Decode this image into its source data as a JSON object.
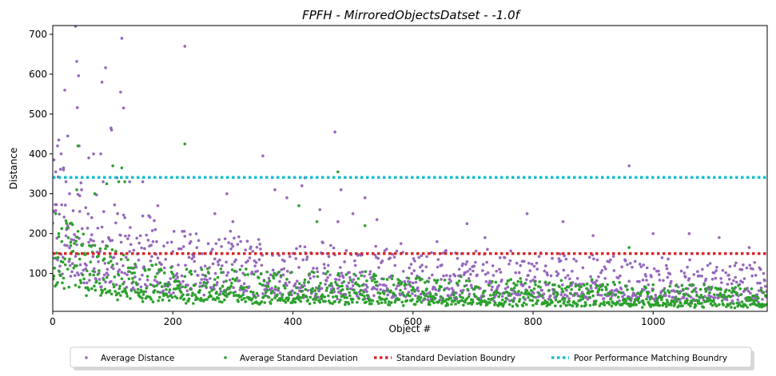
{
  "chart_data": {
    "type": "scatter",
    "title": "FPFH - MirroredObjectsDatset - -1.0f",
    "xlabel": "Object #",
    "ylabel": "Distance",
    "xlim": [
      0,
      1190
    ],
    "ylim": [
      5,
      722
    ],
    "x_ticks": [
      0,
      200,
      400,
      600,
      800,
      1000
    ],
    "y_ticks": [
      100,
      200,
      300,
      400,
      500,
      600,
      700
    ],
    "grid": false,
    "legend_position": "bottom-center",
    "n_objects": 1190,
    "series": [
      {
        "name": "Average Distance",
        "kind": "scatter",
        "color": "#9467bd",
        "trend": [
          [
            0,
            230
          ],
          [
            30,
            200
          ],
          [
            60,
            175
          ],
          [
            100,
            160
          ],
          [
            150,
            140
          ],
          [
            200,
            125
          ],
          [
            300,
            110
          ],
          [
            400,
            100
          ],
          [
            500,
            95
          ],
          [
            600,
            90
          ],
          [
            700,
            88
          ],
          [
            800,
            85
          ],
          [
            900,
            82
          ],
          [
            1000,
            78
          ],
          [
            1100,
            72
          ],
          [
            1190,
            70
          ]
        ],
        "highlights": [
          [
            2,
            385
          ],
          [
            5,
            355
          ],
          [
            8,
            420
          ],
          [
            10,
            435
          ],
          [
            14,
            400
          ],
          [
            18,
            365
          ],
          [
            22,
            330
          ],
          [
            20,
            560
          ],
          [
            25,
            445
          ],
          [
            28,
            300
          ],
          [
            38,
            720
          ],
          [
            40,
            632
          ],
          [
            41,
            516
          ],
          [
            43,
            596
          ],
          [
            44,
            420
          ],
          [
            45,
            295
          ],
          [
            48,
            310
          ],
          [
            55,
            265
          ],
          [
            60,
            390
          ],
          [
            65,
            240
          ],
          [
            68,
            400
          ],
          [
            80,
            400
          ],
          [
            82,
            580
          ],
          [
            84,
            330
          ],
          [
            88,
            616
          ],
          [
            97,
            465
          ],
          [
            98,
            460
          ],
          [
            107,
            340
          ],
          [
            113,
            555
          ],
          [
            115,
            690
          ],
          [
            118,
            515
          ],
          [
            120,
            240
          ],
          [
            128,
            330
          ],
          [
            150,
            330
          ],
          [
            167,
            180
          ],
          [
            175,
            270
          ],
          [
            220,
            670
          ],
          [
            230,
            180
          ],
          [
            270,
            250
          ],
          [
            290,
            300
          ],
          [
            300,
            230
          ],
          [
            350,
            395
          ],
          [
            370,
            310
          ],
          [
            390,
            290
          ],
          [
            415,
            320
          ],
          [
            420,
            340
          ],
          [
            445,
            260
          ],
          [
            470,
            455
          ],
          [
            475,
            230
          ],
          [
            480,
            310
          ],
          [
            500,
            250
          ],
          [
            520,
            290
          ],
          [
            540,
            235
          ],
          [
            580,
            175
          ],
          [
            640,
            180
          ],
          [
            690,
            225
          ],
          [
            720,
            190
          ],
          [
            790,
            250
          ],
          [
            850,
            230
          ],
          [
            900,
            195
          ],
          [
            960,
            370
          ],
          [
            1000,
            200
          ],
          [
            1060,
            200
          ],
          [
            1110,
            190
          ],
          [
            1160,
            165
          ]
        ]
      },
      {
        "name": "Average Standard Deviation",
        "kind": "scatter",
        "color": "#2ca02c",
        "trend": [
          [
            0,
            150
          ],
          [
            30,
            130
          ],
          [
            60,
            110
          ],
          [
            100,
            90
          ],
          [
            150,
            70
          ],
          [
            200,
            68
          ],
          [
            300,
            65
          ],
          [
            400,
            62
          ],
          [
            500,
            58
          ],
          [
            600,
            52
          ],
          [
            700,
            50
          ],
          [
            800,
            48
          ],
          [
            900,
            45
          ],
          [
            1000,
            42
          ],
          [
            1100,
            40
          ],
          [
            1190,
            38
          ]
        ],
        "highlights": [
          [
            5,
            250
          ],
          [
            10,
            200
          ],
          [
            15,
            180
          ],
          [
            30,
            170
          ],
          [
            40,
            310
          ],
          [
            42,
            420
          ],
          [
            70,
            300
          ],
          [
            90,
            325
          ],
          [
            100,
            370
          ],
          [
            110,
            330
          ],
          [
            115,
            365
          ],
          [
            120,
            330
          ],
          [
            220,
            425
          ],
          [
            410,
            270
          ],
          [
            440,
            230
          ],
          [
            475,
            355
          ],
          [
            520,
            220
          ],
          [
            960,
            165
          ]
        ]
      },
      {
        "name": "Standard Deviation Boundry",
        "kind": "hline",
        "color": "#d62728",
        "value": 150
      },
      {
        "name": "Poor Performance Matching Boundry",
        "kind": "hline",
        "color": "#17becf",
        "value": 341
      }
    ]
  }
}
